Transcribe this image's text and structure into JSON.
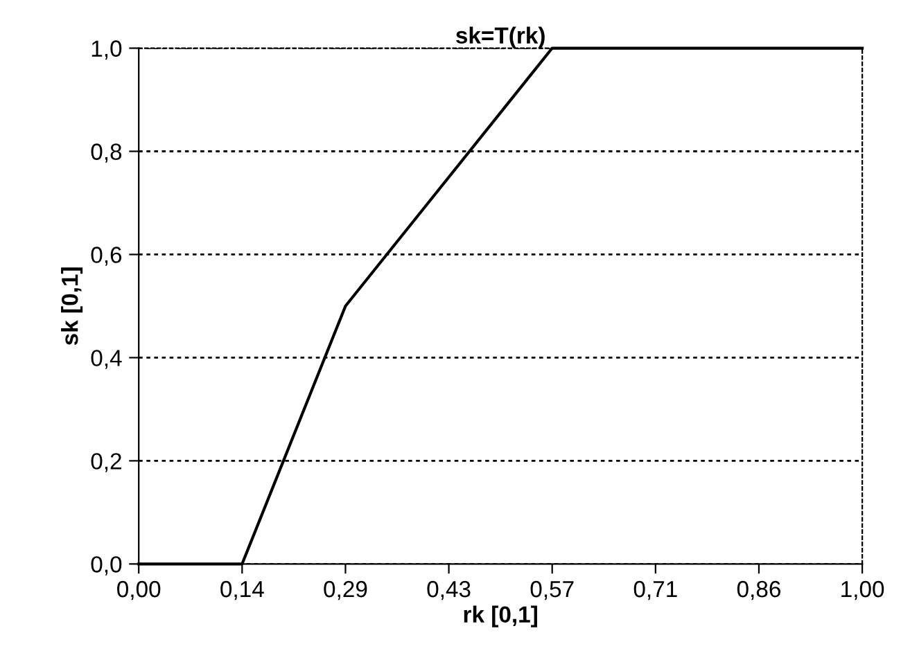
{
  "chart_data": {
    "type": "line",
    "title": "sk=T(rk)",
    "xlabel": "rk [0,1]",
    "ylabel": "sk [0,1]",
    "categories": [
      "0,00",
      "0,14",
      "0,29",
      "0,43",
      "0,57",
      "0,71",
      "0,86",
      "1,00"
    ],
    "series": [
      {
        "color": "#000000",
        "values": [
          0,
          0,
          0.5,
          0.75,
          1,
          1,
          1,
          1
        ]
      }
    ],
    "ylim": [
      0,
      1
    ],
    "yticks": [
      {
        "value": 0,
        "label": "0,0"
      },
      {
        "value": 0.2,
        "label": "0,2"
      },
      {
        "value": 0.4,
        "label": "0,4"
      },
      {
        "value": 0.6,
        "label": "0,6"
      },
      {
        "value": 0.8,
        "label": "0,8"
      },
      {
        "value": 1,
        "label": "1,0"
      }
    ],
    "grid": "y",
    "legend": false,
    "marker": "none",
    "line_style": "solid"
  }
}
